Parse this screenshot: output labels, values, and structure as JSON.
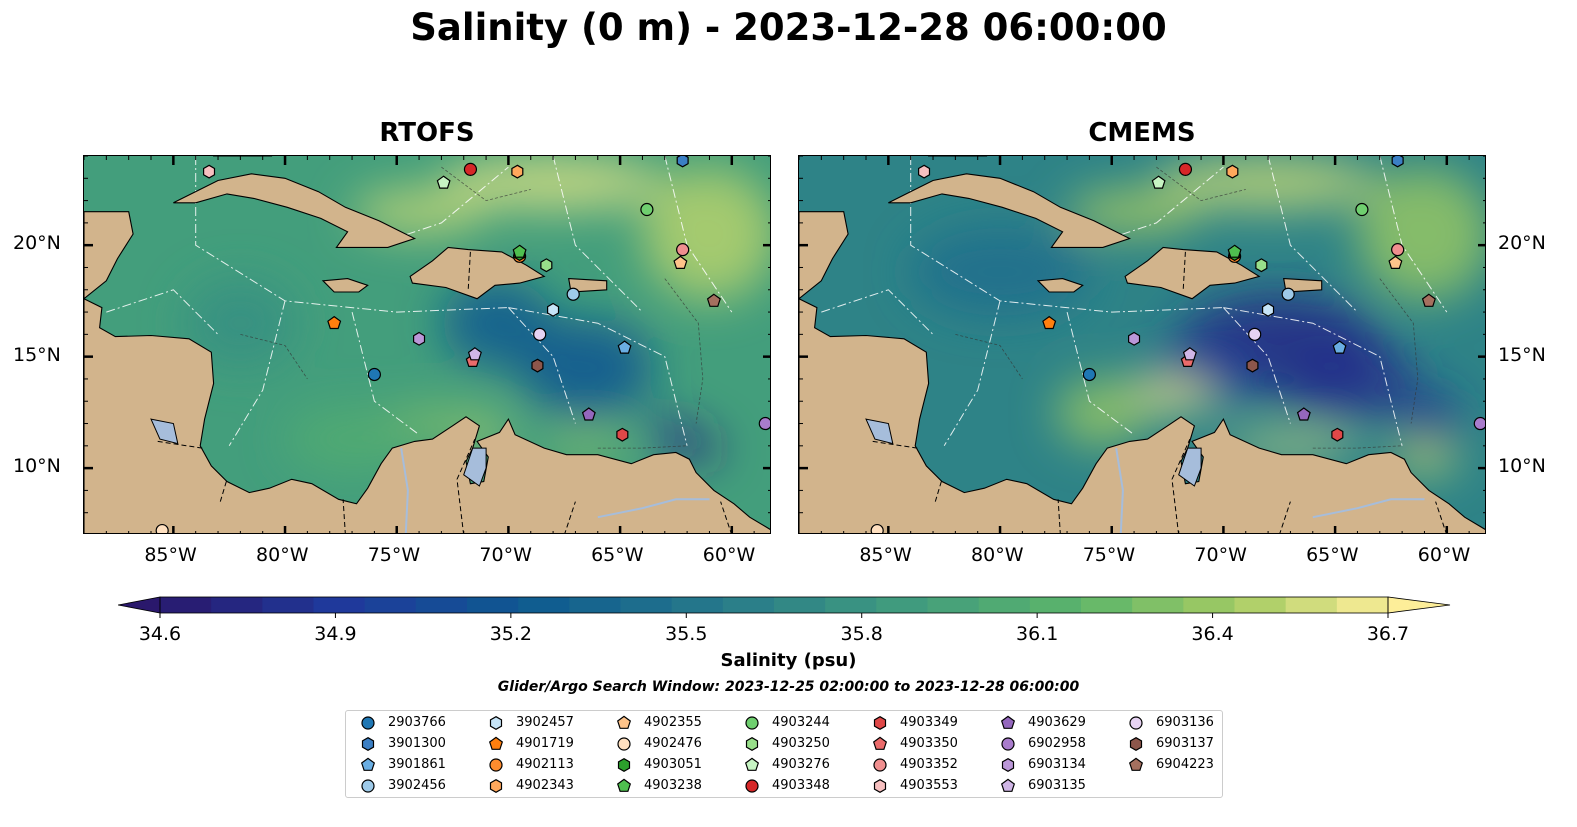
{
  "title": "Salinity (0 m) - 2023-12-28 06:00:00",
  "panels": [
    {
      "title": "RTOFS",
      "variant": "rtofs"
    },
    {
      "title": "CMEMS",
      "variant": "cmems"
    }
  ],
  "lon_labels": [
    "85°W",
    "80°W",
    "75°W",
    "70°W",
    "65°W",
    "60°W"
  ],
  "lat_labels": [
    "20°N",
    "15°N",
    "10°N"
  ],
  "extent": {
    "lon": [
      -89,
      -58.2
    ],
    "lat": [
      7,
      24
    ]
  },
  "colorbar": {
    "label": "Salinity (psu)",
    "min": 34.6,
    "max": 36.7,
    "ticks": [
      "34.6",
      "34.9",
      "35.2",
      "35.5",
      "35.8",
      "36.1",
      "36.4",
      "36.7"
    ],
    "extend": "both",
    "colormap": "haline"
  },
  "search_window": "Glider/Argo Search Window: 2023-12-25 02:00:00 to 2023-12-28 06:00:00",
  "colors": {
    "land": "#d2b48c",
    "lakes": "#a6bddb",
    "rivers": "#a6bddb"
  },
  "floats": [
    {
      "id": "2903766",
      "marker": "circle",
      "color": "#1f77b4",
      "lon": -76.0,
      "lat": 14.2
    },
    {
      "id": "3901300",
      "marker": "hexagon",
      "color": "#3b7fc4",
      "lon": -62.2,
      "lat": 23.8
    },
    {
      "id": "3901861",
      "marker": "pentagon",
      "color": "#6aaee3",
      "lon": -64.8,
      "lat": 15.4
    },
    {
      "id": "3902456",
      "marker": "circle",
      "color": "#9ecae9",
      "lon": -67.1,
      "lat": 17.8
    },
    {
      "id": "3902457",
      "marker": "hexagon",
      "color": "#c6e4f7",
      "lon": -68.0,
      "lat": 17.1
    },
    {
      "id": "4901719",
      "marker": "pentagon",
      "color": "#ff7f0e",
      "lon": -77.8,
      "lat": 16.5
    },
    {
      "id": "4902113",
      "marker": "circle",
      "color": "#ff8c2e",
      "lon": -69.5,
      "lat": 19.5
    },
    {
      "id": "4902343",
      "marker": "hexagon",
      "color": "#ffa85c",
      "lon": -69.6,
      "lat": 23.3
    },
    {
      "id": "4902355",
      "marker": "pentagon",
      "color": "#ffc48a",
      "lon": -62.3,
      "lat": 19.2
    },
    {
      "id": "4902476",
      "marker": "circle",
      "color": "#ffe0c0",
      "lon": -85.5,
      "lat": 7.2
    },
    {
      "id": "4903051",
      "marker": "hexagon",
      "color": "#2ca02c",
      "lon": -69.5,
      "lat": 19.6
    },
    {
      "id": "4903238",
      "marker": "pentagon",
      "color": "#4fbf4f",
      "lon": -69.5,
      "lat": 19.7
    },
    {
      "id": "4903244",
      "marker": "circle",
      "color": "#6fcf6f",
      "lon": -63.8,
      "lat": 21.6
    },
    {
      "id": "4903250",
      "marker": "hexagon",
      "color": "#98df8a",
      "lon": -68.3,
      "lat": 19.1
    },
    {
      "id": "4903276",
      "marker": "pentagon",
      "color": "#c7f4c3",
      "lon": -72.9,
      "lat": 22.8
    },
    {
      "id": "4903348",
      "marker": "circle",
      "color": "#d62728",
      "lon": -71.7,
      "lat": 23.4
    },
    {
      "id": "4903349",
      "marker": "hexagon",
      "color": "#e04848",
      "lon": -64.9,
      "lat": 11.5
    },
    {
      "id": "4903350",
      "marker": "pentagon",
      "color": "#eb6b6b",
      "lon": -71.6,
      "lat": 14.8
    },
    {
      "id": "4903352",
      "marker": "circle",
      "color": "#f08f8f",
      "lon": -62.2,
      "lat": 19.8
    },
    {
      "id": "4903553",
      "marker": "hexagon",
      "color": "#f7c0c0",
      "lon": -83.4,
      "lat": 23.3
    },
    {
      "id": "4903629",
      "marker": "pentagon",
      "color": "#9467bd",
      "lon": -66.4,
      "lat": 12.4
    },
    {
      "id": "6902958",
      "marker": "circle",
      "color": "#a97ccc",
      "lon": -58.5,
      "lat": 12.0
    },
    {
      "id": "6903134",
      "marker": "hexagon",
      "color": "#bb97d8",
      "lon": -74.0,
      "lat": 15.8
    },
    {
      "id": "6903135",
      "marker": "pentagon",
      "color": "#d0b6e6",
      "lon": -71.5,
      "lat": 15.1
    },
    {
      "id": "6903136",
      "marker": "circle",
      "color": "#e6d2f2",
      "lon": -68.6,
      "lat": 16.0
    },
    {
      "id": "6903137",
      "marker": "hexagon",
      "color": "#8c564b",
      "lon": -68.7,
      "lat": 14.6
    },
    {
      "id": "6904223",
      "marker": "pentagon",
      "color": "#a5705f",
      "lon": -60.8,
      "lat": 17.5
    }
  ]
}
